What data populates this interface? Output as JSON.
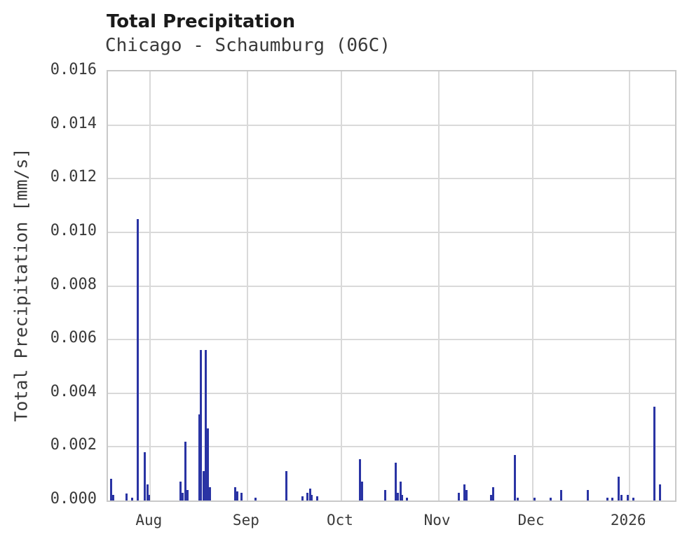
{
  "header": {
    "title": "Total Precipitation",
    "subtitle": "Chicago - Schaumburg (06C)"
  },
  "chart_data": {
    "type": "bar",
    "title": "Total Precipitation",
    "subtitle": "Chicago - Schaumburg (06C)",
    "xlabel": "",
    "ylabel": "Total Precipitation [mm/s]",
    "ylim": [
      0,
      0.016
    ],
    "grid": true,
    "legend": "none",
    "bar_color": "#2a34a4",
    "grid_color": "#d9d9d9",
    "border_color": "#c9c9c9",
    "y_ticks": [
      {
        "value": 0.0,
        "label": "0.000"
      },
      {
        "value": 0.002,
        "label": "0.002"
      },
      {
        "value": 0.004,
        "label": "0.004"
      },
      {
        "value": 0.006,
        "label": "0.006"
      },
      {
        "value": 0.008,
        "label": "0.008"
      },
      {
        "value": 0.01,
        "label": "0.010"
      },
      {
        "value": 0.012,
        "label": "0.012"
      },
      {
        "value": 0.014,
        "label": "0.014"
      },
      {
        "value": 0.016,
        "label": "0.016"
      }
    ],
    "xlim_days": [
      -13.5,
      167.5
    ],
    "x_ticks": [
      {
        "label": "Aug",
        "day": 0
      },
      {
        "label": "Sep",
        "day": 31
      },
      {
        "label": "Oct",
        "day": 61
      },
      {
        "label": "Nov",
        "day": 92
      },
      {
        "label": "Dec",
        "day": 122
      },
      {
        "label": "2026",
        "day": 153
      }
    ],
    "points": [
      {
        "date": "Jul 19",
        "day": -12.5,
        "value": 0.0008
      },
      {
        "date": "Jul 20",
        "day": -11.9,
        "value": 0.0002
      },
      {
        "date": "Jul 24",
        "day": -7.6,
        "value": 0.00025
      },
      {
        "date": "Jul 26",
        "day": -5.8,
        "value": 0.0001
      },
      {
        "date": "Jul 28",
        "day": -4.1,
        "value": 0.0105
      },
      {
        "date": "Jul 30",
        "day": -1.7,
        "value": 0.0018
      },
      {
        "date": "Jul 31",
        "day": -0.9,
        "value": 0.0006
      },
      {
        "date": "Jul 31",
        "day": -0.3,
        "value": 0.0002
      },
      {
        "date": "Aug 10",
        "day": 9.7,
        "value": 0.0007
      },
      {
        "date": "Aug 11",
        "day": 10.3,
        "value": 0.0003
      },
      {
        "date": "Aug 12",
        "day": 11.3,
        "value": 0.0022
      },
      {
        "date": "Aug 12",
        "day": 11.9,
        "value": 0.0004
      },
      {
        "date": "Aug 16",
        "day": 15.6,
        "value": 0.0032
      },
      {
        "date": "Aug 17",
        "day": 16.2,
        "value": 0.0056
      },
      {
        "date": "Aug 18",
        "day": 17.0,
        "value": 0.0011
      },
      {
        "date": "Aug 18",
        "day": 17.8,
        "value": 0.0056
      },
      {
        "date": "Aug 19",
        "day": 18.4,
        "value": 0.0027
      },
      {
        "date": "Aug 20",
        "day": 19.0,
        "value": 0.0005
      },
      {
        "date": "Aug 28",
        "day": 27.0,
        "value": 0.0005
      },
      {
        "date": "Aug 28",
        "day": 27.8,
        "value": 0.00035
      },
      {
        "date": "Aug 30",
        "day": 29.2,
        "value": 0.0003
      },
      {
        "date": "Sep 3",
        "day": 33.5,
        "value": 0.0001
      },
      {
        "date": "Sep 13",
        "day": 43.4,
        "value": 0.0011
      },
      {
        "date": "Sep 18",
        "day": 48.5,
        "value": 0.00015
      },
      {
        "date": "Sep 20",
        "day": 50.2,
        "value": 0.0003
      },
      {
        "date": "Sep 21",
        "day": 51.0,
        "value": 0.00045
      },
      {
        "date": "Sep 21",
        "day": 51.6,
        "value": 0.0002
      },
      {
        "date": "Sep 23",
        "day": 53.2,
        "value": 0.00015
      },
      {
        "date": "Oct 7",
        "day": 67.0,
        "value": 0.00155
      },
      {
        "date": "Oct 7",
        "day": 67.6,
        "value": 0.0007
      },
      {
        "date": "Oct 15",
        "day": 75.0,
        "value": 0.0004
      },
      {
        "date": "Oct 18",
        "day": 78.3,
        "value": 0.0014
      },
      {
        "date": "Oct 19",
        "day": 79.1,
        "value": 0.0003
      },
      {
        "date": "Oct 19",
        "day": 79.8,
        "value": 0.0007
      },
      {
        "date": "Oct 20",
        "day": 80.4,
        "value": 0.0002
      },
      {
        "date": "Oct 22",
        "day": 82.0,
        "value": 0.0001
      },
      {
        "date": "Nov 7",
        "day": 98.5,
        "value": 0.0003
      },
      {
        "date": "Nov 9",
        "day": 100.2,
        "value": 0.0006
      },
      {
        "date": "Nov 9",
        "day": 100.9,
        "value": 0.0004
      },
      {
        "date": "Nov 17",
        "day": 108.8,
        "value": 0.0002
      },
      {
        "date": "Nov 18",
        "day": 109.4,
        "value": 0.0005
      },
      {
        "date": "Nov 25",
        "day": 116.4,
        "value": 0.0017
      },
      {
        "date": "Nov 26",
        "day": 117.2,
        "value": 0.0001
      },
      {
        "date": "Dec 2",
        "day": 122.7,
        "value": 0.0001
      },
      {
        "date": "Dec 7",
        "day": 127.8,
        "value": 0.0001
      },
      {
        "date": "Dec 10",
        "day": 131.2,
        "value": 0.0004
      },
      {
        "date": "Dec 18",
        "day": 139.7,
        "value": 0.0004
      },
      {
        "date": "Dec 25",
        "day": 146.0,
        "value": 0.0001
      },
      {
        "date": "Dec 26",
        "day": 147.5,
        "value": 0.0001
      },
      {
        "date": "Dec 28",
        "day": 149.6,
        "value": 0.0009
      },
      {
        "date": "Dec 29",
        "day": 150.3,
        "value": 0.0002
      },
      {
        "date": "Dec 31",
        "day": 152.5,
        "value": 0.0002
      },
      {
        "date": "Jan 2",
        "day": 154.2,
        "value": 0.0001
      },
      {
        "date": "Jan 8",
        "day": 161.0,
        "value": 0.0035
      },
      {
        "date": "Jan 10",
        "day": 162.6,
        "value": 0.0006
      }
    ]
  }
}
